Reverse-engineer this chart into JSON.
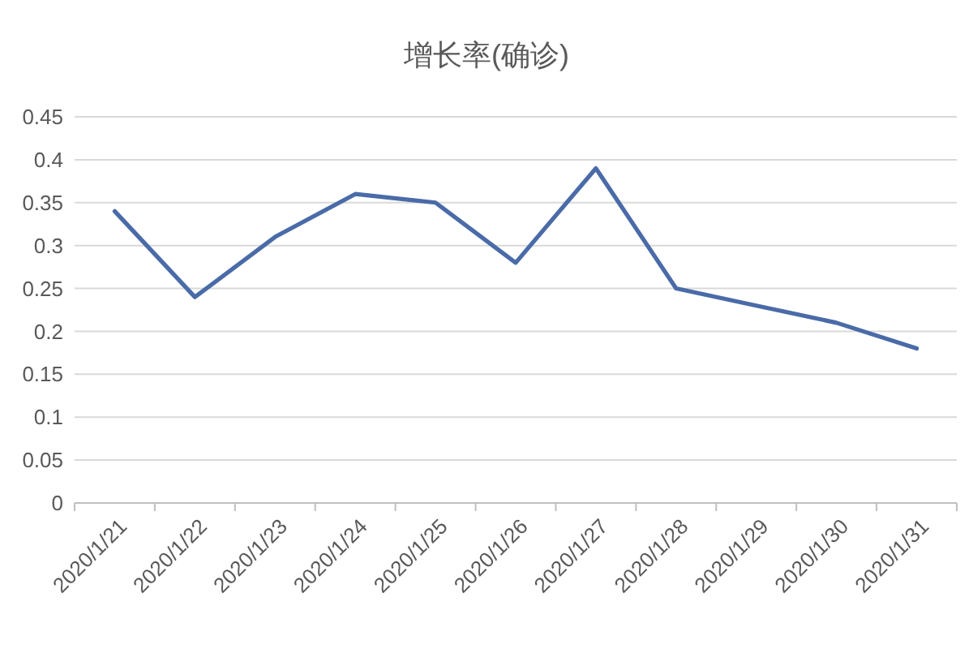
{
  "chart_data": {
    "type": "line",
    "title": "增长率(确诊)",
    "categories": [
      "2020/1/21",
      "2020/1/22",
      "2020/1/23",
      "2020/1/24",
      "2020/1/25",
      "2020/1/26",
      "2020/1/27",
      "2020/1/28",
      "2020/1/29",
      "2020/1/30",
      "2020/1/31"
    ],
    "series": [
      {
        "color": "#4a6ba8",
        "values": [
          0.34,
          0.24,
          0.31,
          0.36,
          0.35,
          0.28,
          0.39,
          0.25,
          0.23,
          0.21,
          0.18
        ]
      }
    ],
    "ylim": [
      0,
      0.45
    ],
    "yticks": [
      0,
      0.05,
      0.1,
      0.15,
      0.2,
      0.25,
      0.3,
      0.35,
      0.4,
      0.45
    ],
    "grid": "y"
  }
}
